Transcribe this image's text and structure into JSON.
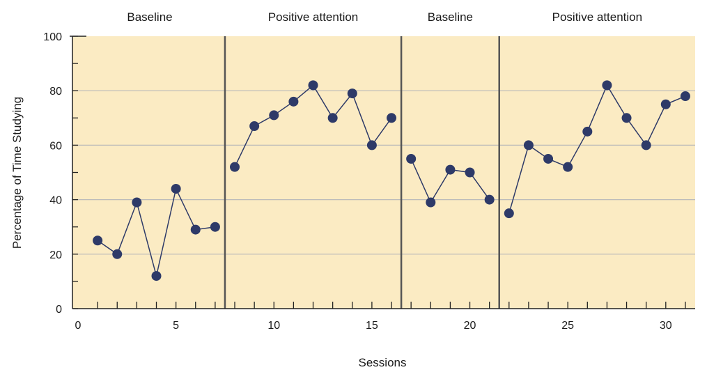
{
  "chart_data": {
    "type": "line",
    "xlabel": "Sessions",
    "ylabel": "Percentage of Time Studying",
    "xlim": [
      0,
      31.5
    ],
    "ylim": [
      0,
      100
    ],
    "xticks": [
      "0",
      "5",
      "10",
      "15",
      "20",
      "25",
      "30"
    ],
    "yticks": [
      "0",
      "20",
      "40",
      "60",
      "80",
      "100"
    ],
    "grid": true,
    "phases": [
      {
        "label": "Baseline",
        "start": 0.7,
        "end": 7.5
      },
      {
        "label": "Positive attention",
        "start": 7.5,
        "end": 16.5
      },
      {
        "label": "Baseline",
        "start": 16.5,
        "end": 21.5
      },
      {
        "label": "Positive attention",
        "start": 21.5,
        "end": 31.5
      }
    ],
    "series": [
      {
        "x": [
          1,
          2,
          3,
          4,
          5,
          6,
          7
        ],
        "y": [
          25,
          20,
          39,
          12,
          44,
          29,
          30
        ]
      },
      {
        "x": [
          8,
          9,
          10,
          11,
          12,
          13,
          14,
          15,
          16
        ],
        "y": [
          52,
          67,
          71,
          76,
          82,
          70,
          79,
          60,
          70
        ]
      },
      {
        "x": [
          17,
          18,
          19,
          20,
          21
        ],
        "y": [
          55,
          39,
          51,
          50,
          40
        ]
      },
      {
        "x": [
          22,
          23,
          24,
          25,
          26,
          27,
          28,
          29,
          30,
          31
        ],
        "y": [
          35,
          60,
          55,
          52,
          65,
          82,
          70,
          60,
          75,
          78
        ]
      }
    ],
    "colors": {
      "background": "#fbebc3",
      "line": "#2e3a68",
      "marker": "#2e3a68",
      "grid": "#b9b9b9",
      "divider": "#555555"
    }
  }
}
